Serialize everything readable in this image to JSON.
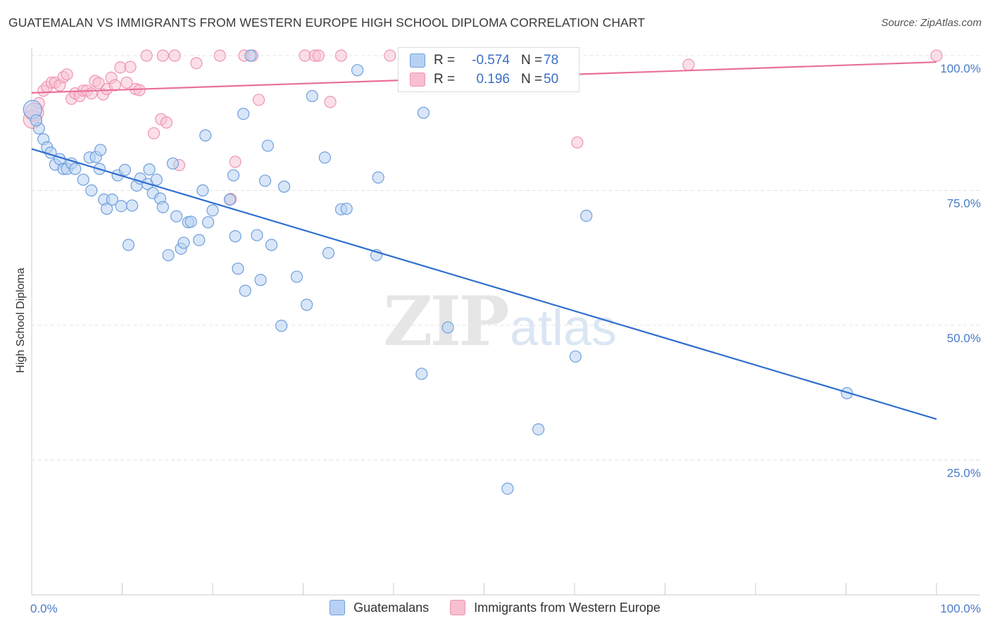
{
  "title": "GUATEMALAN VS IMMIGRANTS FROM WESTERN EUROPE HIGH SCHOOL DIPLOMA CORRELATION CHART",
  "source": "Source: ZipAtlas.com",
  "watermark": {
    "zip": "ZIP",
    "atlas": "atlas"
  },
  "colors": {
    "blue_fill": "#b8d1f2",
    "blue_stroke": "#6f9fdc",
    "blue_line": "#2f6fd0",
    "pink_fill": "#f7bfd0",
    "pink_stroke": "#ee95b2",
    "pink_line": "#e8709a",
    "grid": "#e3e3e3",
    "axis_text": "#4a7bc8"
  },
  "legend": {
    "rows": [
      {
        "r_label": "R =",
        "r_value": "-0.574",
        "n_label": "N =",
        "n_value": "78"
      },
      {
        "r_label": "R =",
        "r_value": "0.196",
        "n_label": "N =",
        "n_value": "50"
      }
    ]
  },
  "bottom_legend": {
    "series1": "Guatemalans",
    "series2": "Immigrants from Western Europe"
  },
  "chart_data": {
    "type": "scatter",
    "title": "GUATEMALAN VS IMMIGRANTS FROM WESTERN EUROPE HIGH SCHOOL DIPLOMA CORRELATION CHART",
    "xlabel": "",
    "ylabel": "High School Diploma",
    "xlim": [
      0,
      100
    ],
    "ylim": [
      0,
      100
    ],
    "x_tick_labels": [
      "0.0%",
      "100.0%"
    ],
    "y_tick_values": [
      25,
      50,
      75,
      100
    ],
    "y_tick_labels": [
      "25.0%",
      "50.0%",
      "75.0%",
      "100.0%"
    ],
    "grid": true,
    "series": [
      {
        "name": "Guatemalans",
        "R": -0.574,
        "N": 78,
        "trend": {
          "x": [
            0,
            100
          ],
          "y": [
            82.7,
            32.6
          ]
        },
        "points": [
          [
            0.1,
            90
          ],
          [
            0.8,
            86.5
          ],
          [
            1.3,
            84.5
          ],
          [
            1.7,
            83
          ],
          [
            2.1,
            82
          ],
          [
            2.6,
            79.8
          ],
          [
            3.1,
            80.8
          ],
          [
            3.5,
            79
          ],
          [
            3.9,
            79
          ],
          [
            4.4,
            80
          ],
          [
            4.8,
            79
          ],
          [
            5.7,
            77
          ],
          [
            6.4,
            81.1
          ],
          [
            6.6,
            75
          ],
          [
            7.1,
            81.2
          ],
          [
            7.5,
            79
          ],
          [
            7.6,
            82.5
          ],
          [
            8.0,
            73.3
          ],
          [
            8.3,
            71.6
          ],
          [
            8.9,
            73.3
          ],
          [
            9.5,
            77.8
          ],
          [
            9.9,
            72.1
          ],
          [
            10.3,
            78.8
          ],
          [
            10.7,
            64.9
          ],
          [
            11.1,
            72.2
          ],
          [
            11.6,
            75.9
          ],
          [
            12.0,
            77.2
          ],
          [
            12.8,
            76.2
          ],
          [
            13.0,
            78.9
          ],
          [
            13.4,
            74.5
          ],
          [
            13.8,
            77
          ],
          [
            14.2,
            73.5
          ],
          [
            14.5,
            71.9
          ],
          [
            15.1,
            63
          ],
          [
            15.6,
            80
          ],
          [
            16.0,
            70.2
          ],
          [
            16.5,
            64.2
          ],
          [
            16.8,
            65.3
          ],
          [
            17.3,
            69.1
          ],
          [
            17.6,
            69.2
          ],
          [
            18.5,
            65.8
          ],
          [
            18.9,
            75
          ],
          [
            19.2,
            85.2
          ],
          [
            19.5,
            69.1
          ],
          [
            20.0,
            71.3
          ],
          [
            21.9,
            73.3
          ],
          [
            22.3,
            77.8
          ],
          [
            22.5,
            66.5
          ],
          [
            22.8,
            60.5
          ],
          [
            23.4,
            89.2
          ],
          [
            23.6,
            56.4
          ],
          [
            24.2,
            100
          ],
          [
            24.9,
            66.7
          ],
          [
            25.3,
            58.4
          ],
          [
            25.8,
            76.8
          ],
          [
            26.1,
            83.3
          ],
          [
            26.5,
            64.9
          ],
          [
            27.6,
            49.9
          ],
          [
            27.9,
            75.7
          ],
          [
            29.3,
            59
          ],
          [
            30.4,
            53.8
          ],
          [
            31.0,
            92.5
          ],
          [
            32.4,
            81.1
          ],
          [
            32.8,
            63.4
          ],
          [
            34.2,
            71.5
          ],
          [
            34.8,
            71.6
          ],
          [
            36.0,
            97.3
          ],
          [
            38.1,
            63
          ],
          [
            38.3,
            77.4
          ],
          [
            43.1,
            41
          ],
          [
            43.3,
            89.4
          ],
          [
            46.0,
            49.6
          ],
          [
            52.6,
            19.7
          ],
          [
            56.0,
            30.7
          ],
          [
            60.1,
            44.2
          ],
          [
            61.3,
            70.3
          ],
          [
            90.1,
            37.4
          ],
          [
            0.5,
            88
          ]
        ]
      },
      {
        "name": "Immigrants from Western Europe",
        "R": 0.196,
        "N": 50,
        "trend": {
          "x": [
            0,
            100
          ],
          "y": [
            93.1,
            98.8
          ]
        },
        "points": [
          [
            0.1,
            88.2
          ],
          [
            0.8,
            91.2
          ],
          [
            1.3,
            93.5
          ],
          [
            1.7,
            94.2
          ],
          [
            2.2,
            95
          ],
          [
            2.6,
            95
          ],
          [
            3.1,
            94.5
          ],
          [
            3.5,
            96
          ],
          [
            3.9,
            96.5
          ],
          [
            4.4,
            92
          ],
          [
            4.8,
            93
          ],
          [
            5.3,
            92.5
          ],
          [
            5.7,
            93.5
          ],
          [
            6.1,
            93.5
          ],
          [
            6.6,
            93
          ],
          [
            7.0,
            95.3
          ],
          [
            7.4,
            94.9
          ],
          [
            7.9,
            92.8
          ],
          [
            8.3,
            93.8
          ],
          [
            8.8,
            95.9
          ],
          [
            9.2,
            94.5
          ],
          [
            9.8,
            97.8
          ],
          [
            10.5,
            95
          ],
          [
            10.9,
            97.9
          ],
          [
            11.5,
            93.8
          ],
          [
            11.9,
            93.6
          ],
          [
            12.7,
            100
          ],
          [
            13.5,
            85.6
          ],
          [
            14.3,
            88.2
          ],
          [
            14.5,
            100
          ],
          [
            14.9,
            87.6
          ],
          [
            15.8,
            100
          ],
          [
            16.3,
            79.7
          ],
          [
            18.2,
            98.6
          ],
          [
            20.8,
            100
          ],
          [
            22.5,
            80.3
          ],
          [
            22.0,
            73.4
          ],
          [
            23.5,
            100
          ],
          [
            24.4,
            100
          ],
          [
            25.1,
            91.8
          ],
          [
            30.2,
            100
          ],
          [
            31.3,
            100
          ],
          [
            31.7,
            100
          ],
          [
            33.0,
            91.4
          ],
          [
            34.2,
            100
          ],
          [
            39.6,
            100
          ],
          [
            60.3,
            83.9
          ],
          [
            72.6,
            98.3
          ],
          [
            100,
            100
          ],
          [
            0.3,
            89.5
          ]
        ]
      }
    ]
  }
}
